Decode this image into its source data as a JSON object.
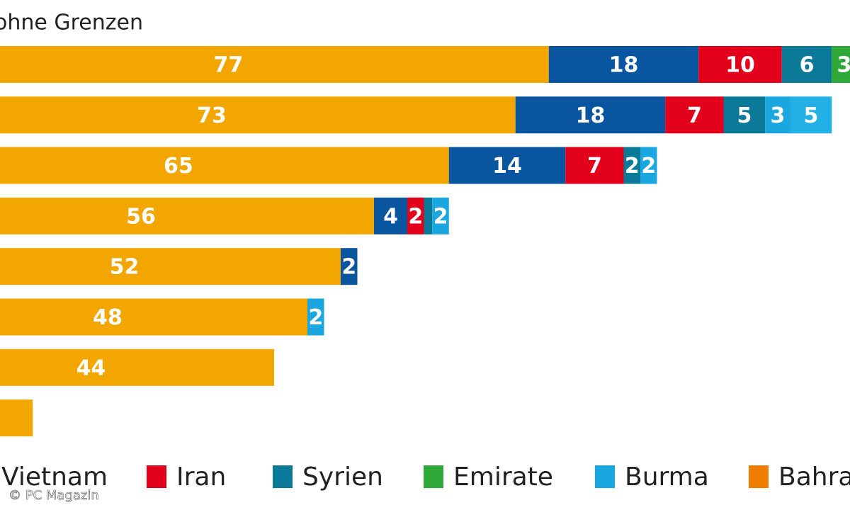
{
  "chart_data": {
    "type": "stacked-bar",
    "title": "ohne Grenzen",
    "credit": "© PC Magazin",
    "series": [
      {
        "color": "#f3a600",
        "values": [
          77,
          73,
          65,
          56,
          52,
          48,
          44,
          15
        ]
      },
      {
        "name": "Vietnam",
        "color": "#0a559f",
        "values": [
          18,
          18,
          14,
          4,
          2,
          null,
          null,
          null
        ]
      },
      {
        "name": "Iran",
        "color": "#e2001a",
        "values": [
          10,
          7,
          7,
          2,
          null,
          null,
          null,
          null
        ]
      },
      {
        "name": "Syrien",
        "color": "#0b7a99",
        "values": [
          6,
          5,
          2,
          1,
          null,
          null,
          null,
          null
        ]
      },
      {
        "name": "Emirate",
        "color": "#2ea836",
        "values": [
          3,
          null,
          null,
          null,
          null,
          null,
          null,
          null
        ]
      },
      {
        "name": "Burma",
        "color": "#1aa7e0",
        "values": [
          null,
          3,
          2,
          2,
          null,
          2,
          null,
          null
        ]
      },
      {
        "name": "Bahrain",
        "color": "#ee7d00",
        "values": [
          null,
          null,
          null,
          null,
          null,
          null,
          null,
          null
        ]
      },
      {
        "color": "#22b0e6",
        "values": [
          null,
          5,
          null,
          null,
          null,
          null,
          null,
          null
        ]
      }
    ]
  }
}
